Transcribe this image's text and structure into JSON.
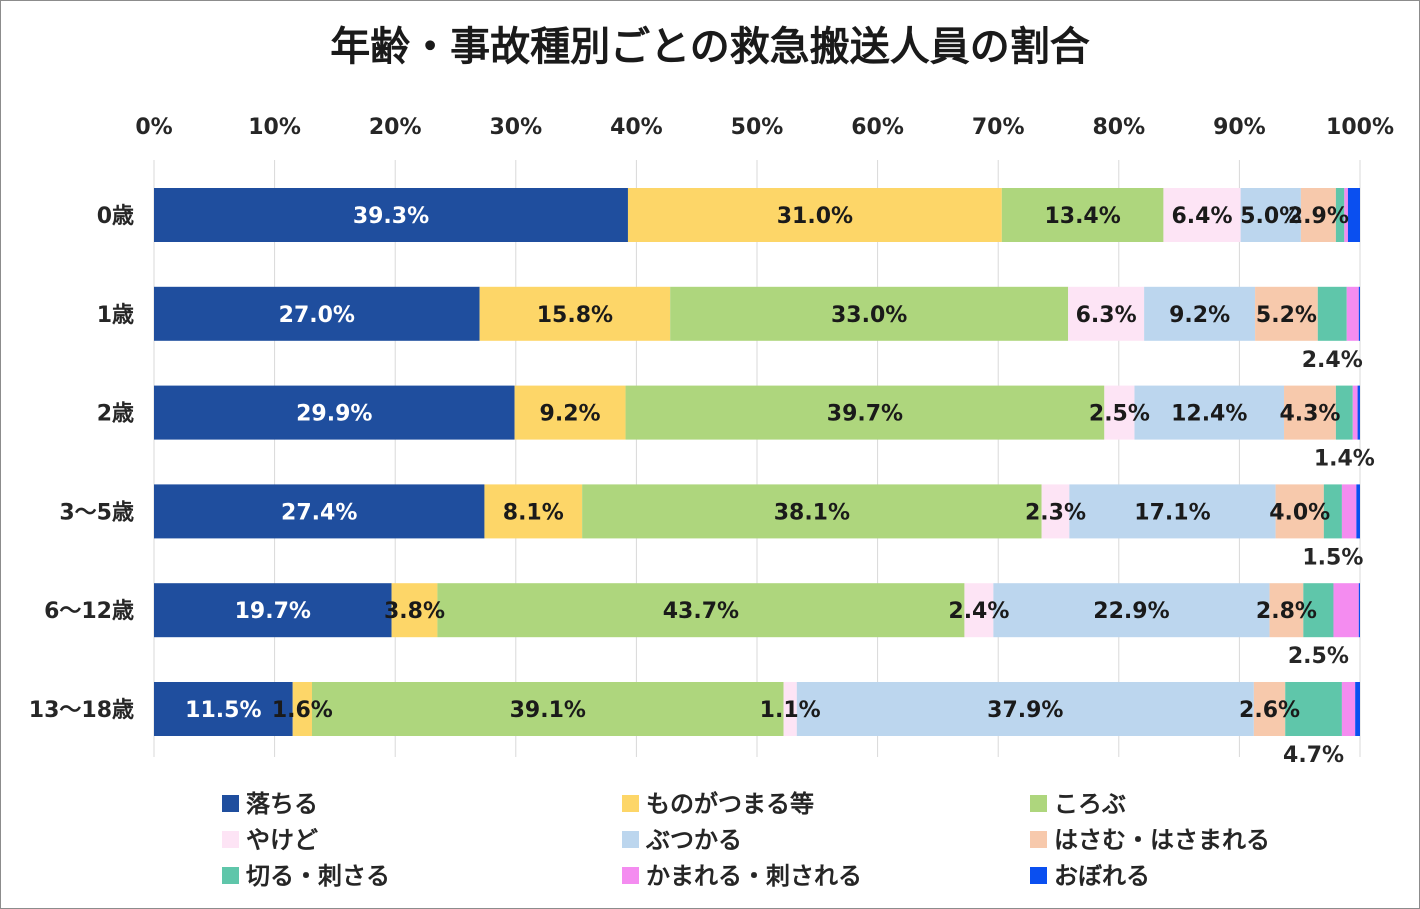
{
  "chart_data": {
    "type": "bar",
    "orientation": "horizontal",
    "stacked": "percent",
    "title": "年齢・事故種別ごとの救急搬送人員の割合",
    "xlabel": "",
    "ylabel": "",
    "xlim": [
      0,
      100
    ],
    "x_ticks": [
      "0%",
      "10%",
      "20%",
      "30%",
      "40%",
      "50%",
      "60%",
      "70%",
      "80%",
      "90%",
      "100%"
    ],
    "x_axis_position": "top",
    "grid": true,
    "legend_position": "bottom",
    "categories": [
      "0歳",
      "1歳",
      "2歳",
      "3〜5歳",
      "6〜12歳",
      "13〜18歳"
    ],
    "series": [
      {
        "name": "落ちる",
        "color": "#1f4e9e",
        "label_color": "#ffffff",
        "values": [
          39.3,
          27.0,
          29.9,
          27.4,
          19.7,
          11.5
        ],
        "labels": [
          "39.3%",
          "27.0%",
          "29.9%",
          "27.4%",
          "19.7%",
          "11.5%"
        ]
      },
      {
        "name": "ものがつまる等",
        "color": "#fdd668",
        "label_color": "#1a1a1a",
        "values": [
          31.0,
          15.8,
          9.2,
          8.1,
          3.8,
          1.6
        ],
        "labels": [
          "31.0%",
          "15.8%",
          "9.2%",
          "8.1%",
          "3.8%",
          "1.6%"
        ]
      },
      {
        "name": "ころぶ",
        "color": "#aed67d",
        "label_color": "#1a1a1a",
        "values": [
          13.4,
          33.0,
          39.7,
          38.1,
          43.7,
          39.1
        ],
        "labels": [
          "13.4%",
          "33.0%",
          "39.7%",
          "38.1%",
          "43.7%",
          "39.1%"
        ]
      },
      {
        "name": "やけど",
        "color": "#fde4f5",
        "label_color": "#1a1a1a",
        "values": [
          6.4,
          6.3,
          2.5,
          2.3,
          2.4,
          1.1
        ],
        "labels": [
          "6.4%",
          "6.3%",
          "2.5%",
          "2.3%",
          "2.4%",
          "1.1%"
        ]
      },
      {
        "name": "ぶつかる",
        "color": "#bcd6ee",
        "label_color": "#1a1a1a",
        "values": [
          5.0,
          9.2,
          12.4,
          17.1,
          22.9,
          37.9
        ],
        "labels": [
          "5.0%",
          "9.2%",
          "12.4%",
          "17.1%",
          "22.9%",
          "37.9%"
        ]
      },
      {
        "name": "はさむ・はさまれる",
        "color": "#f7c9ac",
        "label_color": "#1a1a1a",
        "values": [
          2.9,
          5.2,
          4.3,
          4.0,
          2.8,
          2.6
        ],
        "labels": [
          "2.9%",
          "5.2%",
          "4.3%",
          "4.0%",
          "2.8%",
          "2.6%"
        ]
      },
      {
        "name": "切る・刺さる",
        "color": "#5fc6aa",
        "label_color": "#1a1a1a",
        "values": [
          0.7,
          2.4,
          1.4,
          1.5,
          2.5,
          4.7
        ],
        "labels": [
          "",
          "2.4%",
          "1.4%",
          "1.5%",
          "2.5%",
          "4.7%"
        ]
      },
      {
        "name": "かまれる・刺される",
        "color": "#f48cf0",
        "label_color": "#1a1a1a",
        "values": [
          0.3,
          1.0,
          0.4,
          1.2,
          2.1,
          1.1
        ],
        "labels": [
          "",
          "",
          "",
          "",
          "",
          ""
        ]
      },
      {
        "name": "おぼれる",
        "color": "#0a4ff0",
        "label_color": "#1a1a1a",
        "values": [
          1.0,
          0.1,
          0.2,
          0.3,
          0.1,
          0.4
        ],
        "labels": [
          "",
          "",
          "",
          "",
          "",
          ""
        ]
      }
    ]
  }
}
